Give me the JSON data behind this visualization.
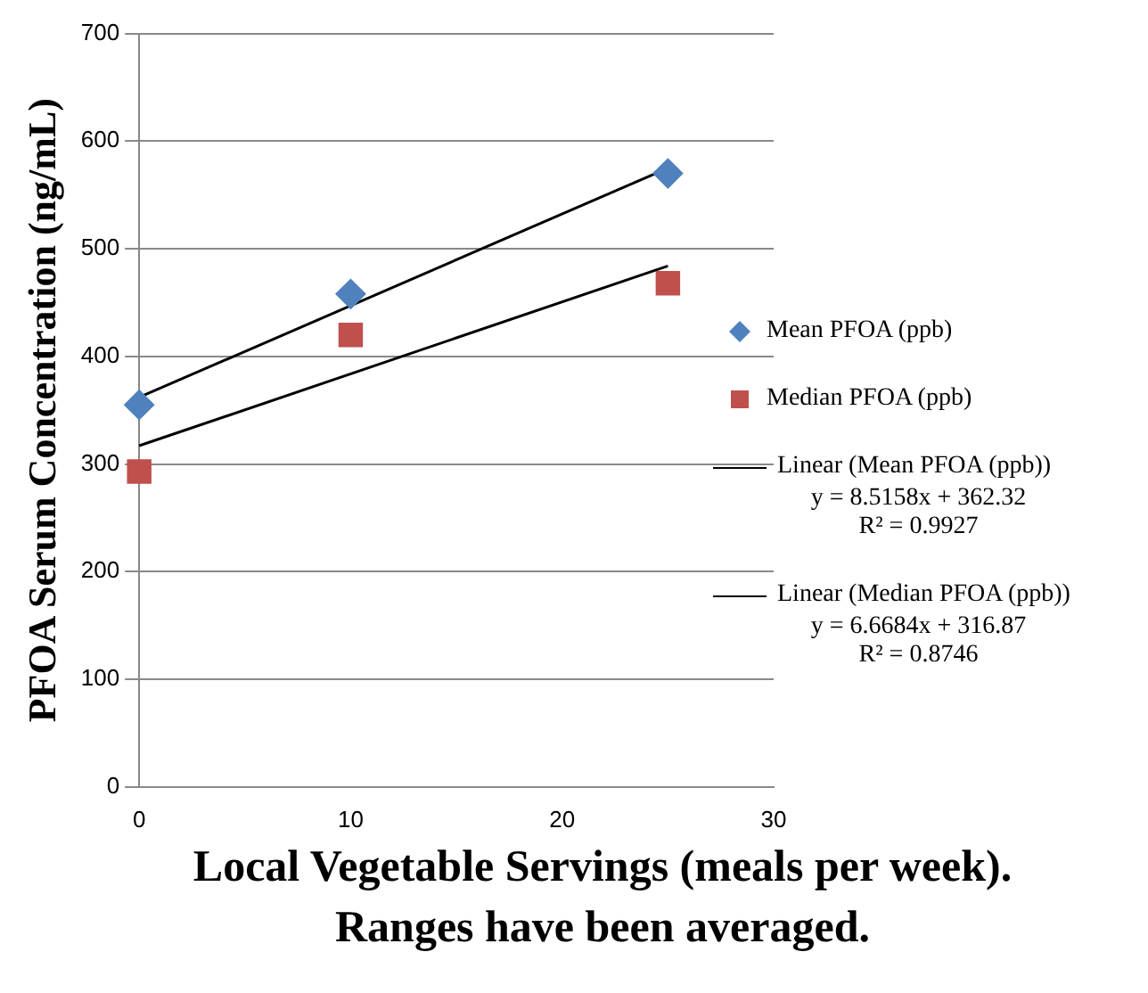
{
  "chart_data": {
    "type": "scatter",
    "xlabel": "Local Vegetable Servings (meals per week).  Ranges have been averaged.",
    "ylabel": "PFOA Serum Concentration (ng/mL)",
    "xlim": [
      0,
      30
    ],
    "xticks": [
      0,
      10,
      20,
      30
    ],
    "ylim": [
      0,
      700
    ],
    "yticks": [
      0,
      100,
      200,
      300,
      400,
      500,
      600,
      700
    ],
    "grid": "y",
    "legend": "right",
    "series": [
      {
        "name": "Mean PFOA (ppb)",
        "type": "scatter",
        "color": "#4f81bd",
        "marker": "diamond",
        "x": [
          0,
          10,
          25
        ],
        "values": [
          355,
          458,
          570
        ]
      },
      {
        "name": "Median PFOA (ppb)",
        "type": "scatter",
        "color": "#c0504d",
        "marker": "square",
        "x": [
          0,
          10,
          25
        ],
        "values": [
          293,
          420,
          468
        ]
      },
      {
        "name": "Linear (Mean PFOA (ppb))",
        "type": "line",
        "color": "#000000",
        "marker": "none",
        "line_style": "solid",
        "x": [
          0,
          25
        ],
        "values": [
          362,
          575
        ]
      },
      {
        "name": "Linear (Median PFOA (ppb))",
        "type": "line",
        "color": "#000000",
        "marker": "none",
        "line_style": "solid",
        "x": [
          0,
          25
        ],
        "values": [
          317,
          484
        ]
      }
    ],
    "annotations": [
      "y = 8.5158x + 362.32\nR² = 0.9927",
      "y = 6.6684x + 316.87\nR² = 0.8746"
    ]
  }
}
